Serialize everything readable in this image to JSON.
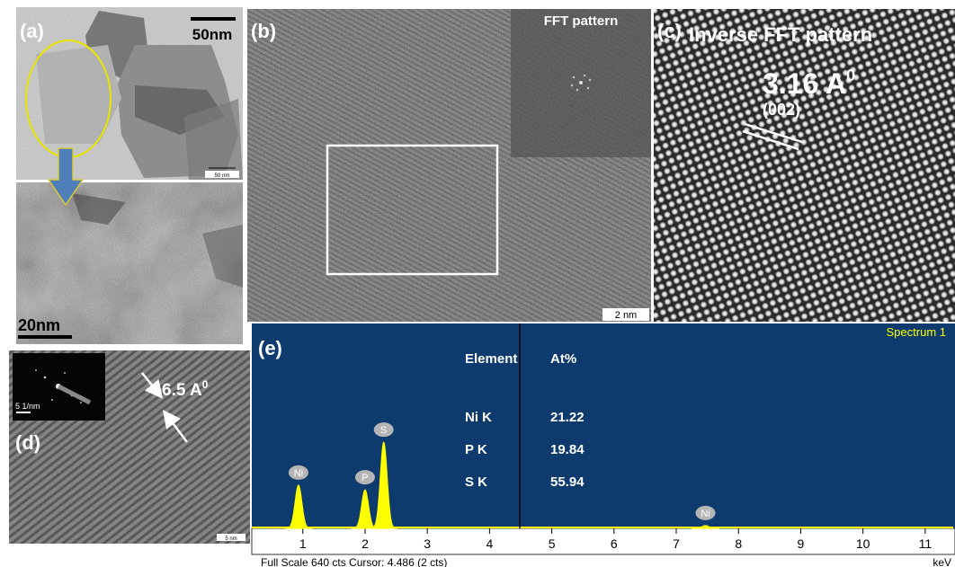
{
  "panels": {
    "a": {
      "label": "(a)",
      "scale_top": "50nm",
      "scale_small": "50 nm",
      "scale_bottom": "20nm"
    },
    "b": {
      "label": "(b)",
      "inset_title": "FFT pattern",
      "scale": "2 nm"
    },
    "c": {
      "label": "(c)",
      "title": "Inverse FFT pattern",
      "spacing": "3.16 A",
      "spacing_sup": "0",
      "plane": "(002)"
    },
    "d": {
      "label": "(d)",
      "spacing": "6.5 A",
      "spacing_sup": "0",
      "inset_scale": "5 1/nm",
      "scale": "5 nm"
    }
  },
  "chart_data": {
    "type": "spectrum",
    "label": "(e)",
    "title": "Spectrum 1",
    "x_unit": "keV",
    "footer": "Full Scale 640 cts Cursor: 4.486  (2 cts)",
    "xlim": [
      0.18,
      11.45
    ],
    "xticks": [
      1,
      2,
      3,
      4,
      5,
      6,
      7,
      8,
      9,
      10,
      11
    ],
    "ylim": [
      0,
      640
    ],
    "cursor": 4.486,
    "color": "#ffff00",
    "peaks": {
      "labels": [
        "Ni",
        "P",
        "S",
        "Ni"
      ],
      "x": [
        0.93,
        2.0,
        2.3,
        7.47
      ],
      "values": [
        138,
        123,
        275,
        9
      ]
    },
    "table": {
      "header": [
        "Element",
        "At%"
      ],
      "rows": [
        [
          "Ni  K",
          21.22
        ],
        [
          "P  K",
          19.84
        ],
        [
          "S  K",
          55.94
        ]
      ]
    }
  }
}
